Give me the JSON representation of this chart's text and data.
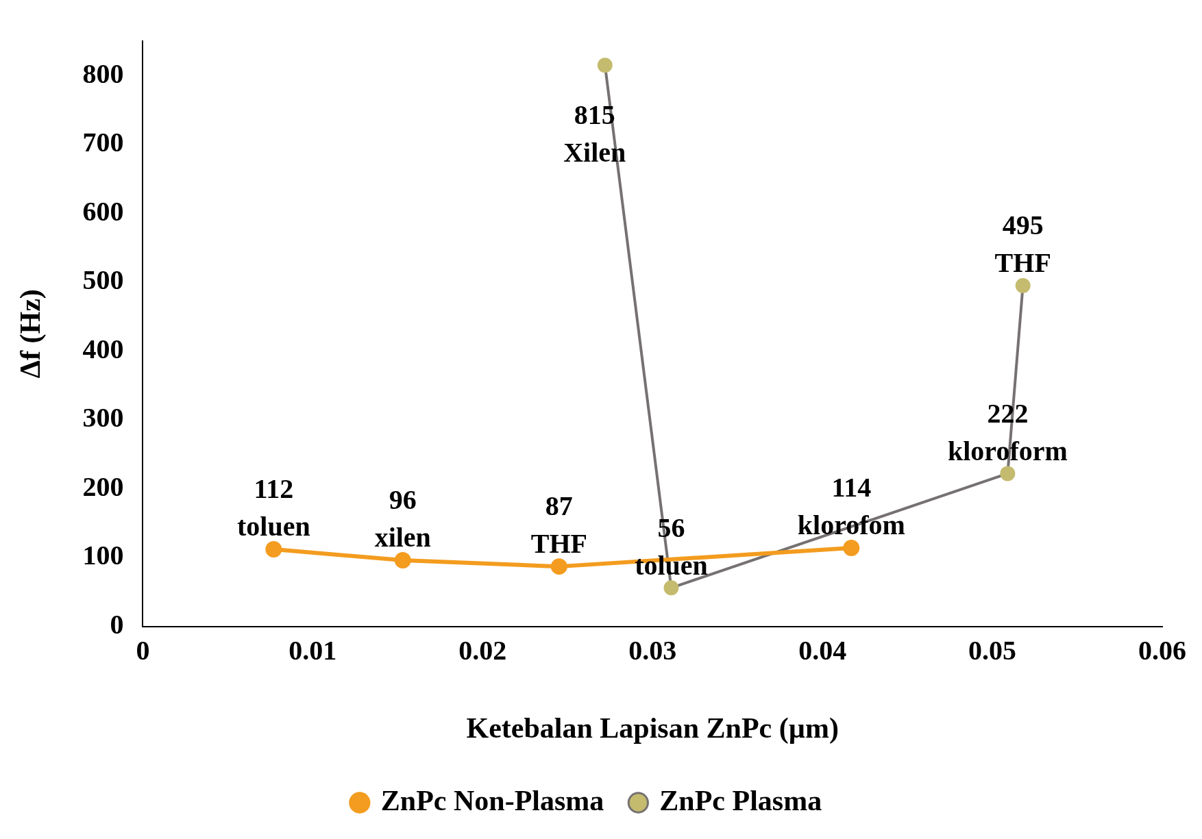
{
  "chart_data": {
    "type": "line",
    "xlabel": "Ketebalan Lapisan ZnPc (µm)",
    "ylabel": "Δf (Hz)",
    "xlim": [
      0,
      0.06
    ],
    "xticks": [
      0,
      0.01,
      0.02,
      0.03,
      0.04,
      0.05,
      0.06
    ],
    "ylim": [
      0,
      850
    ],
    "yticks": [
      0,
      100,
      200,
      300,
      400,
      500,
      600,
      700,
      800
    ],
    "grid": false,
    "legend": "bottom",
    "marker": "circle",
    "line_style": "solid",
    "series": [
      {
        "name": "ZnPc Non-Plasma",
        "color": "#f39c1f",
        "x": [
          0.0077,
          0.0153,
          0.0245,
          0.0417
        ],
        "values": [
          112,
          96,
          87,
          114
        ],
        "value_labels": [
          "112\ntoluen",
          "96\nxilen",
          "87\nTHF",
          "114\nklorofom"
        ]
      },
      {
        "name": "ZnPc Plasma",
        "color": "#767171",
        "colors": [
          "#c4bb6e",
          "#c4bb6e",
          "#c4bb6e",
          "#c4bb6e"
        ],
        "x": [
          0.0272,
          0.0311,
          0.0509,
          0.0518
        ],
        "values": [
          815,
          56,
          222,
          495
        ],
        "value_labels": [
          "815\nXilen",
          "56\ntoluen",
          "222\nkloroform",
          "495\nTHF"
        ]
      }
    ]
  }
}
